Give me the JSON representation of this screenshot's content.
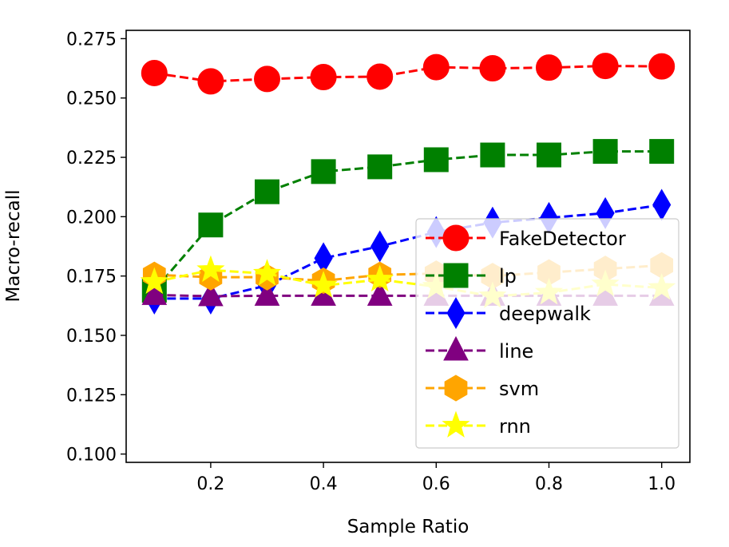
{
  "chart_data": {
    "type": "line",
    "xlabel": "Sample Ratio",
    "ylabel": "Macro-recall",
    "xlim": [
      0.05,
      1.05
    ],
    "ylim": [
      0.0965,
      0.2785
    ],
    "x_ticks": [
      0.2,
      0.4,
      0.6,
      0.8,
      1.0
    ],
    "x_tick_labels": [
      "0.2",
      "0.4",
      "0.6",
      "0.8",
      "1.0"
    ],
    "y_ticks": [
      0.1,
      0.125,
      0.15,
      0.175,
      0.2,
      0.225,
      0.25,
      0.275
    ],
    "y_tick_labels": [
      "0.100",
      "0.125",
      "0.150",
      "0.175",
      "0.200",
      "0.225",
      "0.250",
      "0.275"
    ],
    "grid": false,
    "legend_position": "lower-right",
    "x": [
      0.1,
      0.2,
      0.3,
      0.4,
      0.5,
      0.6,
      0.7,
      0.8,
      0.9,
      1.0
    ],
    "series": [
      {
        "name": "FakeDetector",
        "color": "#ff0000",
        "marker": "circle",
        "values": [
          0.2605,
          0.257,
          0.258,
          0.2588,
          0.259,
          0.263,
          0.2625,
          0.2628,
          0.2635,
          0.2633
        ]
      },
      {
        "name": "lp",
        "color": "#008000",
        "marker": "square",
        "values": [
          0.169,
          0.1965,
          0.2105,
          0.219,
          0.221,
          0.224,
          0.226,
          0.226,
          0.2275,
          0.2275
        ]
      },
      {
        "name": "deepwalk",
        "color": "#0000ff",
        "marker": "diamond",
        "values": [
          0.1655,
          0.1655,
          0.171,
          0.1825,
          0.1875,
          0.1935,
          0.1975,
          0.1995,
          0.2015,
          0.205
        ]
      },
      {
        "name": "line",
        "color": "#800080",
        "marker": "triangle",
        "values": [
          0.167,
          0.1665,
          0.1667,
          0.1667,
          0.1667,
          0.1667,
          0.1667,
          0.1667,
          0.1667,
          0.1667
        ]
      },
      {
        "name": "svm",
        "color": "#ffa500",
        "marker": "hexagon",
        "values": [
          0.1755,
          0.1745,
          0.1745,
          0.173,
          0.1755,
          0.176,
          0.175,
          0.1765,
          0.178,
          0.1795
        ]
      },
      {
        "name": "rnn",
        "color": "#ffff00",
        "marker": "star",
        "values": [
          0.1725,
          0.1775,
          0.176,
          0.171,
          0.1735,
          0.1705,
          0.1665,
          0.168,
          0.1715,
          0.17
        ]
      }
    ]
  }
}
